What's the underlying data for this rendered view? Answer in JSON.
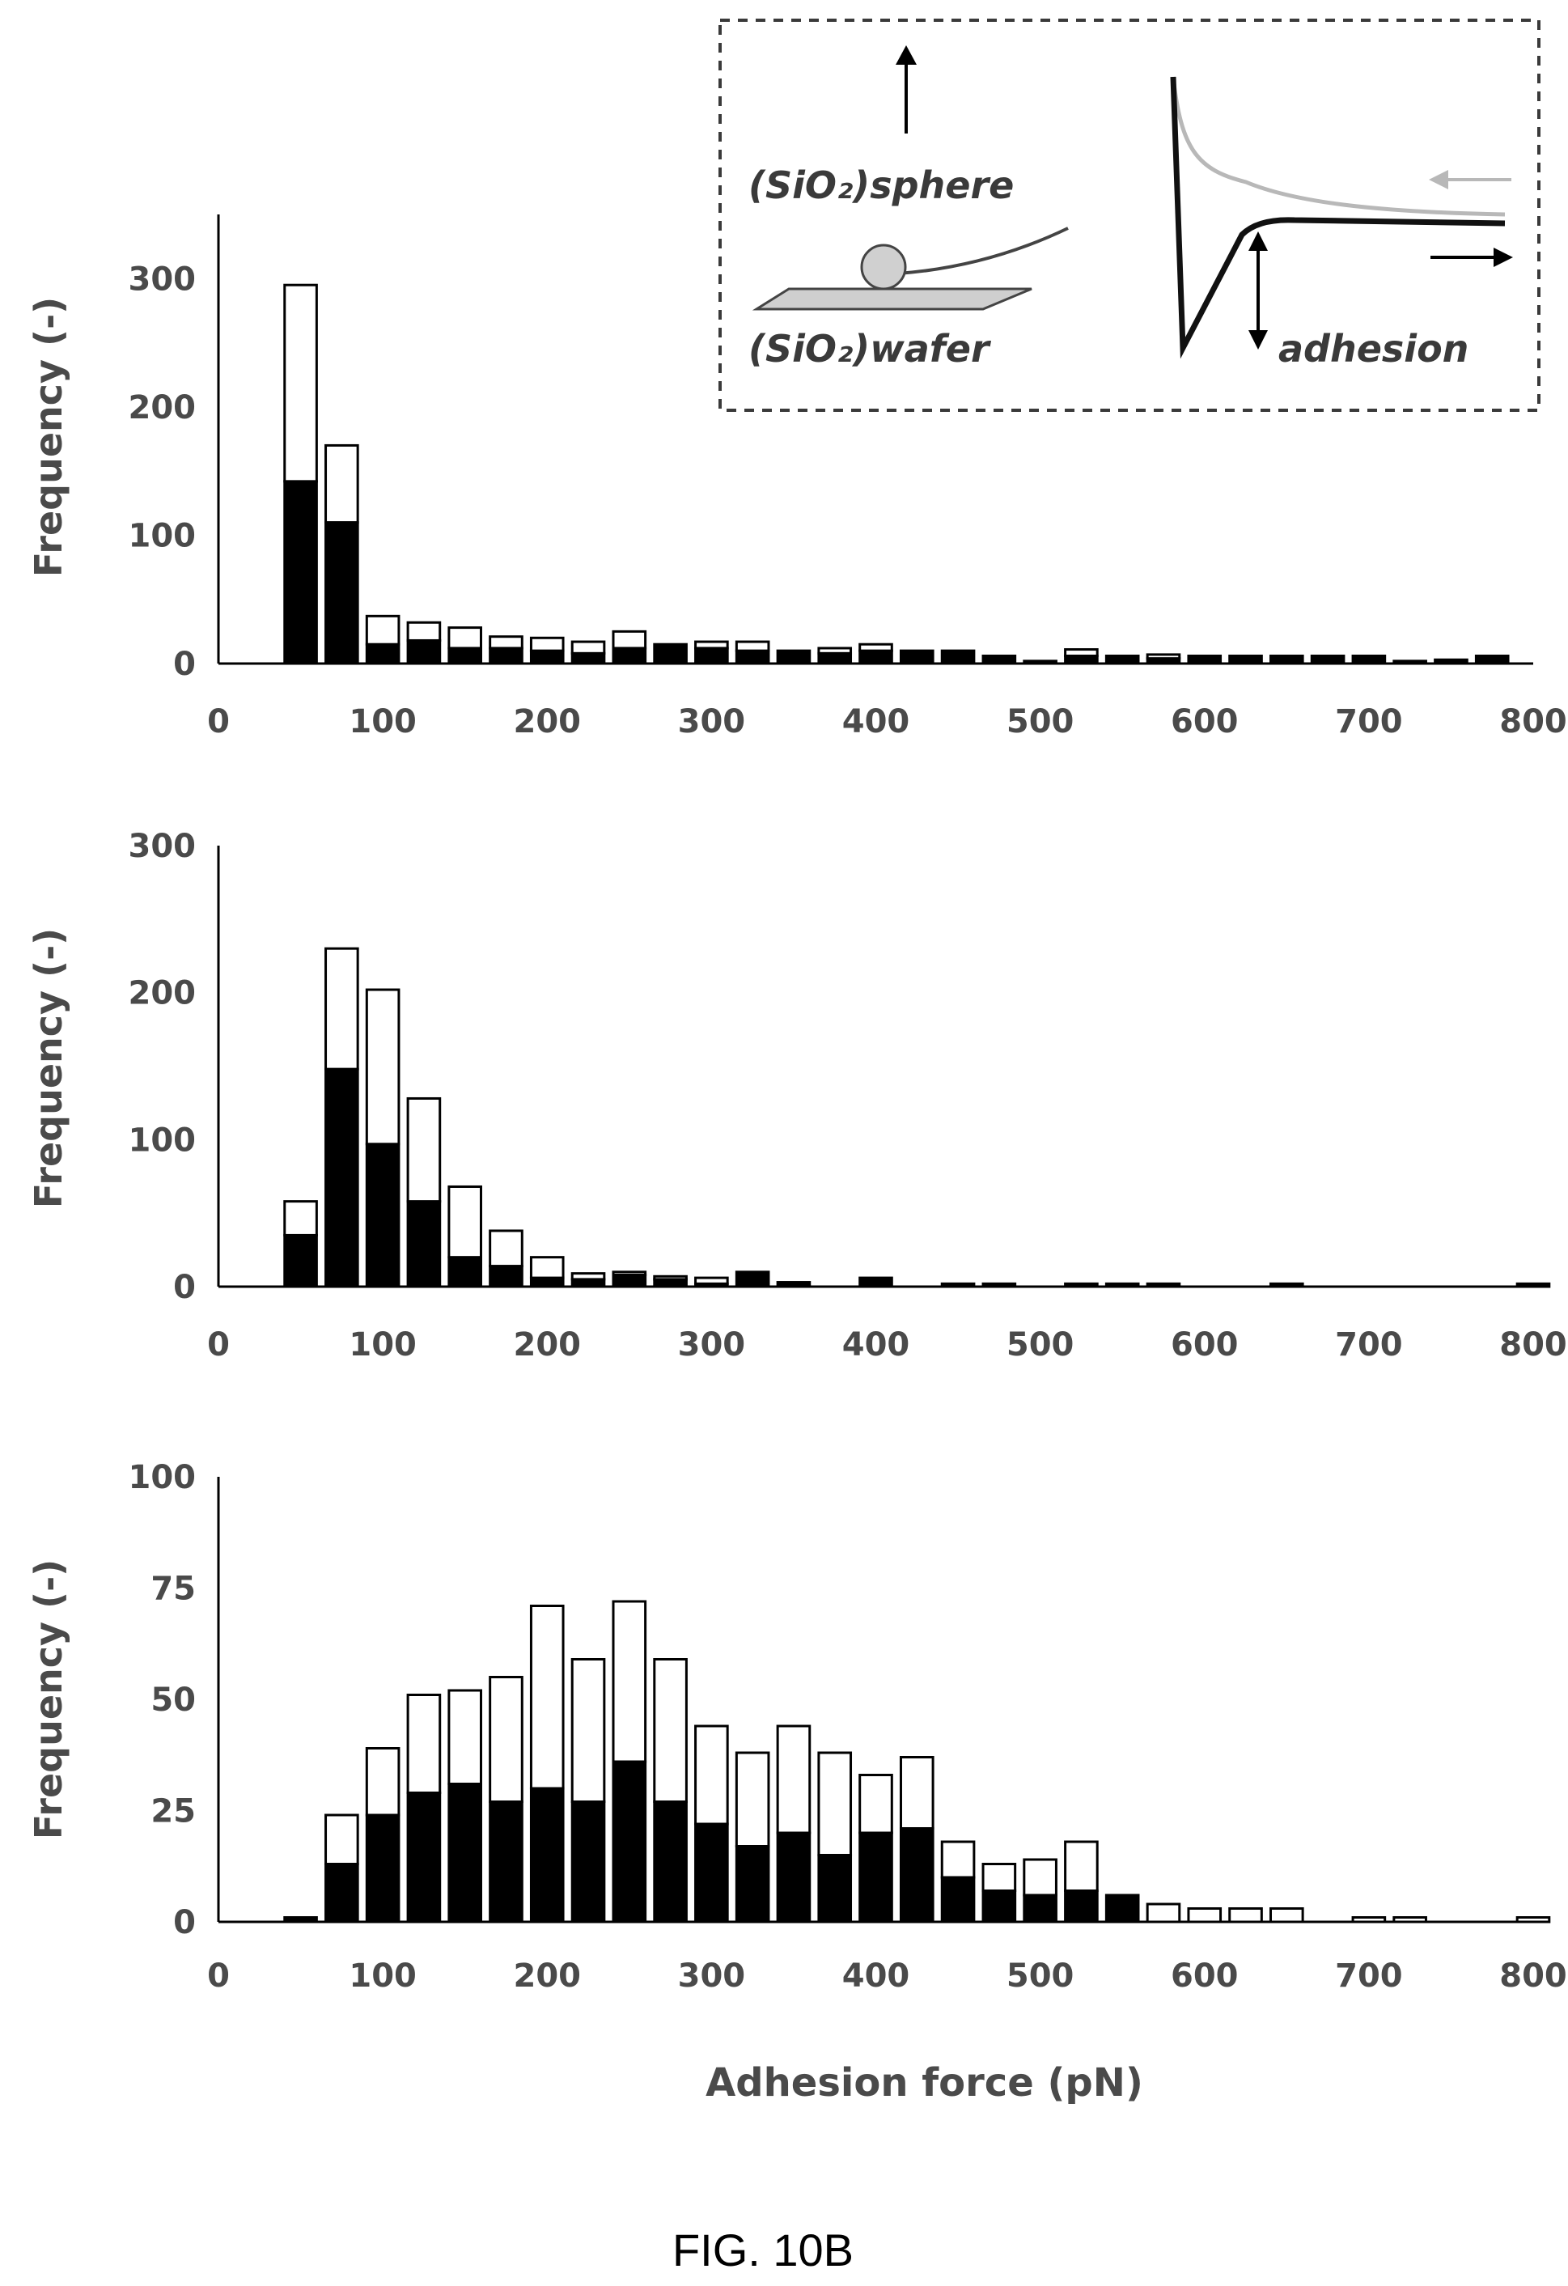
{
  "figure": {
    "caption": "FIG. 10B"
  },
  "inset": {
    "sphere_label": "(SiO₂)sphere",
    "wafer_label": "(SiO₂)wafer",
    "adhesion_label": "adhesion"
  },
  "chart_data": [
    {
      "type": "bar",
      "stacked": true,
      "ylabel": "Frequency (-)",
      "xlabel": "",
      "xlim": [
        0,
        800
      ],
      "ylim": [
        0,
        350
      ],
      "xticks": [
        "0",
        "100",
        "200",
        "300",
        "400",
        "500",
        "600",
        "700",
        "800"
      ],
      "yticks": [
        "0",
        "100",
        "200",
        "300"
      ],
      "bin_width": 25,
      "x": [
        50,
        75,
        100,
        125,
        150,
        175,
        200,
        225,
        250,
        275,
        300,
        325,
        350,
        375,
        400,
        425,
        450,
        475,
        500,
        525,
        550,
        575,
        600,
        625,
        650,
        675,
        700,
        725,
        750,
        775
      ],
      "series": [
        {
          "fill": "#000000",
          "values": [
            142,
            110,
            15,
            18,
            12,
            12,
            10,
            8,
            12,
            15,
            12,
            10,
            10,
            8,
            10,
            10,
            10,
            6,
            2,
            6,
            6,
            4,
            6,
            6,
            6,
            6,
            6,
            2,
            3,
            6
          ]
        },
        {
          "fill": "#ffffff",
          "values": [
            153,
            60,
            22,
            14,
            16,
            9,
            10,
            9,
            13,
            0,
            5,
            7,
            0,
            4,
            5,
            0,
            0,
            0,
            0,
            5,
            0,
            3,
            0,
            0,
            0,
            0,
            0,
            0,
            0,
            0
          ]
        }
      ]
    },
    {
      "type": "bar",
      "stacked": true,
      "ylabel": "Frequency (-)",
      "xlabel": "",
      "xlim": [
        0,
        800
      ],
      "ylim": [
        0,
        300
      ],
      "xticks": [
        "0",
        "100",
        "200",
        "300",
        "400",
        "500",
        "600",
        "700",
        "800"
      ],
      "yticks": [
        "0",
        "100",
        "200",
        "300"
      ],
      "bin_width": 25,
      "x": [
        50,
        75,
        100,
        125,
        150,
        175,
        200,
        225,
        250,
        275,
        300,
        325,
        350,
        375,
        400,
        450,
        475,
        525,
        550,
        575,
        650,
        800
      ],
      "series": [
        {
          "fill": "#000000",
          "values": [
            35,
            148,
            97,
            58,
            20,
            14,
            6,
            5,
            8,
            5,
            2,
            10,
            3,
            0,
            6,
            2,
            2,
            2,
            2,
            2,
            2,
            2
          ]
        },
        {
          "fill": "#ffffff",
          "values": [
            23,
            82,
            105,
            70,
            48,
            24,
            14,
            4,
            2,
            2,
            4,
            0,
            0,
            0,
            0,
            0,
            0,
            0,
            0,
            0,
            0,
            0
          ]
        }
      ]
    },
    {
      "type": "bar",
      "stacked": true,
      "ylabel": "Frequency (-)",
      "xlabel": "Adhesion force (pN)",
      "xlim": [
        0,
        800
      ],
      "ylim": [
        0,
        100
      ],
      "xticks": [
        "0",
        "100",
        "200",
        "300",
        "400",
        "500",
        "600",
        "700",
        "800"
      ],
      "yticks": [
        "0",
        "25",
        "50",
        "75",
        "100"
      ],
      "bin_width": 25,
      "x": [
        50,
        75,
        100,
        125,
        150,
        175,
        200,
        225,
        250,
        275,
        300,
        325,
        350,
        375,
        400,
        425,
        450,
        475,
        500,
        525,
        550,
        575,
        600,
        625,
        650,
        700,
        725,
        800
      ],
      "series": [
        {
          "fill": "#000000",
          "values": [
            1,
            13,
            24,
            29,
            31,
            27,
            30,
            27,
            36,
            27,
            22,
            17,
            20,
            15,
            20,
            21,
            10,
            7,
            6,
            7,
            6,
            0,
            0,
            0,
            0,
            0,
            0,
            0
          ]
        },
        {
          "fill": "#ffffff",
          "values": [
            0,
            11,
            15,
            22,
            21,
            28,
            41,
            32,
            36,
            32,
            22,
            21,
            24,
            23,
            13,
            16,
            8,
            6,
            8,
            11,
            0,
            4,
            3,
            3,
            3,
            1,
            1,
            1
          ]
        }
      ]
    }
  ]
}
